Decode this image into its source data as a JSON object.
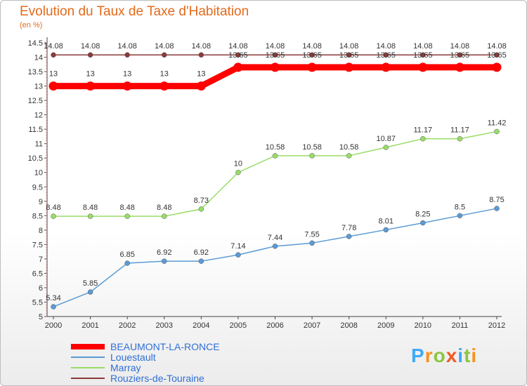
{
  "chart_data": {
    "type": "line",
    "title": "Evolution du Taux de Taxe d'Habitation",
    "subtitle": "(en %)",
    "x": [
      "2000",
      "2001",
      "2002",
      "2003",
      "2004",
      "2005",
      "2006",
      "2007",
      "2008",
      "2009",
      "2010",
      "2011",
      "2012"
    ],
    "ylim": [
      5,
      14.5
    ],
    "yticks": [
      "5",
      "5.5",
      "6",
      "6.5",
      "7",
      "7.5",
      "8",
      "8.5",
      "9",
      "9.5",
      "10",
      "10.5",
      "11",
      "11.5",
      "12",
      "12.5",
      "13",
      "13.5",
      "14",
      "14.5"
    ],
    "grid": false,
    "legend_position": "bottom-left",
    "series": [
      {
        "name": "BEAUMONT-LA-RONCE",
        "color": "#ff0000",
        "values": [
          13,
          13,
          13,
          13,
          13,
          13.65,
          13.65,
          13.65,
          13.65,
          13.65,
          13.65,
          13.65,
          13.65
        ],
        "labels": [
          "13",
          "13",
          "13",
          "13",
          "13",
          "13.65",
          "13.65",
          "13.65",
          "13.65",
          "13.65",
          "13.65",
          "13.65",
          "13.65"
        ]
      },
      {
        "name": "Louestault",
        "color": "#5b9bd5",
        "values": [
          5.34,
          5.85,
          6.85,
          6.92,
          6.92,
          7.14,
          7.44,
          7.55,
          7.78,
          8.01,
          8.25,
          8.5,
          8.75
        ],
        "labels": [
          "5.34",
          "5.85",
          "6.85",
          "6.92",
          "6.92",
          "7.14",
          "7.44",
          "7.55",
          "7.78",
          "8.01",
          "8.25",
          "8.5",
          "8.75"
        ]
      },
      {
        "name": "Marray",
        "color": "#99dd66",
        "values": [
          8.48,
          8.48,
          8.48,
          8.48,
          8.73,
          10,
          10.58,
          10.58,
          10.58,
          10.87,
          11.17,
          11.17,
          11.42
        ],
        "labels": [
          "8.48",
          "8.48",
          "8.48",
          "8.48",
          "8.73",
          "10",
          "10.58",
          "10.58",
          "10.58",
          "10.87",
          "11.17",
          "11.17",
          "11.42"
        ]
      },
      {
        "name": "Rouziers-de-Touraine",
        "color": "#8b3a3a",
        "values": [
          14.08,
          14.08,
          14.08,
          14.08,
          14.08,
          14.08,
          14.08,
          14.08,
          14.08,
          14.08,
          14.08,
          14.08,
          14.08
        ],
        "labels": [
          "14.08",
          "14.08",
          "14.08",
          "14.08",
          "14.08",
          "14.08",
          "14.08",
          "14.08",
          "14.08",
          "14.08",
          "14.08",
          "14.08",
          "14.08"
        ]
      }
    ]
  },
  "logo": {
    "letters": [
      "P",
      "r",
      "o",
      "x",
      "i",
      "t",
      "i"
    ],
    "colors": [
      "#3fa9f5",
      "#f7931e",
      "#8cc63f",
      "#f15a24",
      "#3fa9f5",
      "#8cc63f",
      "#f7931e"
    ]
  }
}
